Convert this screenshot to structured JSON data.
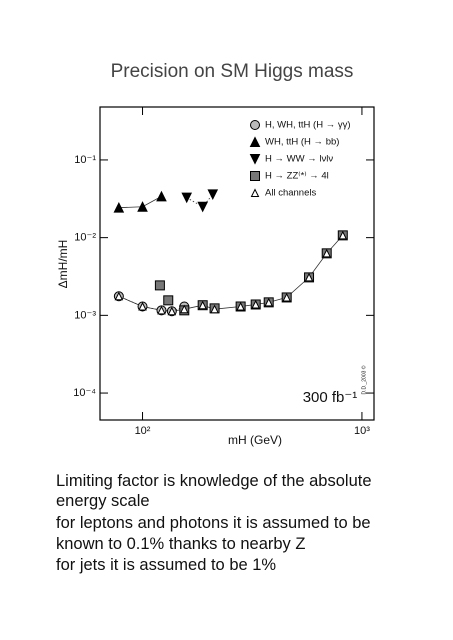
{
  "chart_data": {
    "type": "scatter",
    "title": "Precision on SM Higgs mass",
    "xlabel": "mH (GeV)",
    "ylabel": "ΔmH/mH",
    "xscale": "log",
    "yscale": "log",
    "xlim": [
      64,
      1135
    ],
    "ylim": [
      4.5e-05,
      0.48
    ],
    "xticks": [
      {
        "value": 100,
        "label": "10²"
      },
      {
        "value": 1000,
        "label": "10³"
      }
    ],
    "yticks": [
      {
        "value": 0.0001,
        "label": "10⁻⁴"
      },
      {
        "value": 0.001,
        "label": "10⁻³"
      },
      {
        "value": 0.01,
        "label": "10⁻²"
      },
      {
        "value": 0.1,
        "label": "10⁻¹"
      }
    ],
    "legend": "upper right",
    "annotations": [
      "300 fb⁻¹",
      "D.D._2003 ©"
    ],
    "series": [
      {
        "name": "H, WH, ttH (H → γγ)",
        "color": "#bbbbbb",
        "marker": "circle",
        "line": "dotted",
        "x": [
          78,
          100,
          122,
          136,
          155
        ],
        "values": [
          0.00176,
          0.0013,
          0.00116,
          0.00113,
          0.0013
        ]
      },
      {
        "name": "WH, ttH (H → bb)",
        "color": "#000000",
        "marker": "triangle-up",
        "line": "solid",
        "x": [
          78,
          100,
          122
        ],
        "values": [
          0.0243,
          0.025,
          0.034
        ]
      },
      {
        "name": "H → WW → lνlν",
        "color": "#000000",
        "marker": "triangle-down",
        "line": "dotted",
        "x": [
          159,
          188,
          209
        ],
        "values": [
          0.0327,
          0.025,
          0.036
        ]
      },
      {
        "name": "H → ZZ⁽*⁾ → 4l",
        "color": "#777777",
        "marker": "square",
        "line": "none",
        "x": [
          120,
          131,
          155,
          188,
          213,
          280,
          328,
          376,
          454,
          574,
          691,
          818
        ],
        "values": [
          0.00243,
          0.00156,
          0.00116,
          0.00135,
          0.00123,
          0.0013,
          0.00138,
          0.00147,
          0.0017,
          0.00308,
          0.00628,
          0.0107
        ]
      },
      {
        "name": "All channels",
        "color": "#ffffff",
        "marker": "triangle-open",
        "line": "solid",
        "x": [
          78,
          100,
          122,
          136,
          155,
          188,
          213,
          280,
          328,
          376,
          454,
          574,
          691,
          818
        ],
        "values": [
          0.00176,
          0.0013,
          0.00116,
          0.00113,
          0.0012,
          0.00135,
          0.0012,
          0.0013,
          0.00138,
          0.00147,
          0.0017,
          0.00308,
          0.00628,
          0.0107
        ]
      }
    ]
  },
  "notes": [
    "Limiting factor is knowledge of the absolute",
    "energy scale",
    "for leptons and photons it is assumed to be",
    "known to 0.1% thanks to nearby Z",
    "for jets it is assumed to be 1%"
  ]
}
